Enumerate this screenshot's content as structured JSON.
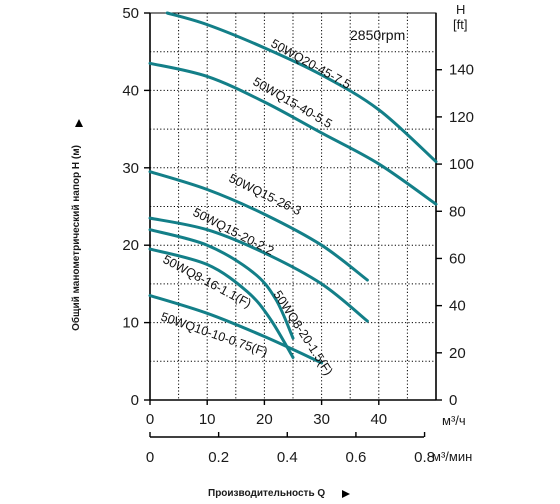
{
  "chart_data": {
    "type": "line",
    "title": "",
    "note": "2850rpm",
    "xlabel": "Производительность Q",
    "ylabel": "Общий манометрический напор H (м)",
    "x_unit_primary": "м³/ч",
    "x_unit_secondary": "м³/мин",
    "y_unit_secondary_top": "H",
    "y_unit_secondary_bottom": "[ft]",
    "xlim": [
      0,
      50
    ],
    "ylim": [
      0,
      50
    ],
    "x_ticks": [
      "0",
      "10",
      "20",
      "30",
      "40"
    ],
    "x_ticks_secondary": [
      "0",
      "0.2",
      "0.4",
      "0.6",
      "0.8"
    ],
    "y_ticks": [
      "0",
      "10",
      "20",
      "30",
      "40",
      "50"
    ],
    "y_ticks_secondary": [
      "0",
      "20",
      "40",
      "60",
      "80",
      "100",
      "120",
      "140"
    ],
    "grid": true,
    "series_color": "#137f88",
    "series": [
      {
        "name": "50WQ20-45-7.5",
        "x": [
          3,
          10,
          20,
          30,
          40,
          50
        ],
        "y": [
          50,
          48.5,
          45.5,
          42,
          37.5,
          30.8
        ]
      },
      {
        "name": "50WQ15-40-5.5",
        "x": [
          0,
          10,
          20,
          30,
          40,
          50
        ],
        "y": [
          43.5,
          41.8,
          38.5,
          34.5,
          30.5,
          25.3
        ]
      },
      {
        "name": "50WQ15-26-3",
        "x": [
          0,
          10,
          20,
          30,
          38
        ],
        "y": [
          29.5,
          27.2,
          24,
          20,
          15.5
        ]
      },
      {
        "name": "50WQ15-20-2.2",
        "x": [
          0,
          10,
          20,
          30,
          38
        ],
        "y": [
          23.5,
          22,
          19,
          15,
          10.2
        ]
      },
      {
        "name": "50WQ8-20-1.5(F)",
        "x": [
          0,
          10,
          18,
          22,
          25
        ],
        "y": [
          22,
          20,
          16.5,
          13,
          8
        ]
      },
      {
        "name": "50WQ8-16-1.1(F)",
        "x": [
          0,
          10,
          17,
          21,
          25
        ],
        "y": [
          19.5,
          17.5,
          14,
          10.5,
          5.5
        ]
      },
      {
        "name": "50WQ10-10-0.75(F)",
        "x": [
          0,
          10,
          20,
          30
        ],
        "y": [
          13.5,
          11.2,
          8.2,
          4.8
        ]
      }
    ]
  }
}
